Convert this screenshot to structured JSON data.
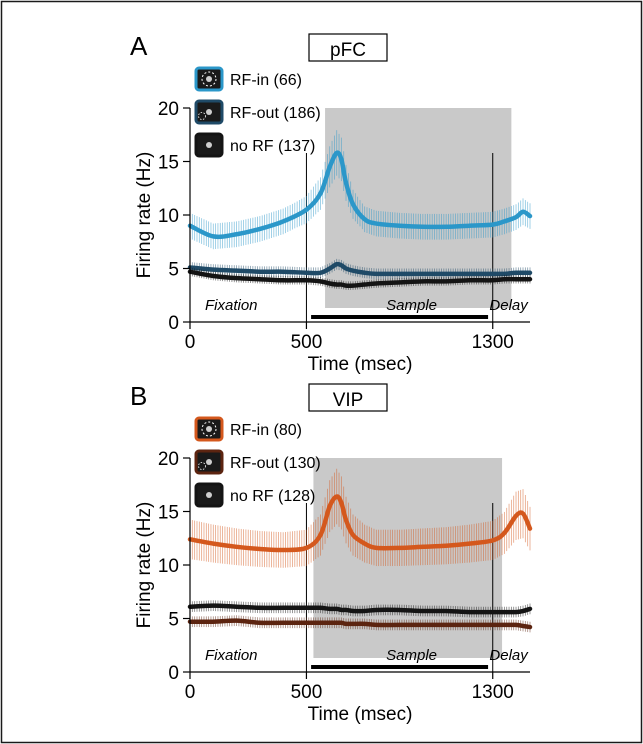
{
  "chart_data": [
    {
      "type": "line",
      "panel_label": "A",
      "title": "pFC",
      "xlabel": "Time (msec)",
      "ylabel": "Firing rate (Hz)",
      "xlim": [
        0,
        1460
      ],
      "ylim": [
        0,
        20
      ],
      "x_ticks": [
        0,
        500,
        1300
      ],
      "x_tick_labels": [
        "0",
        "500",
        "1300"
      ],
      "y_ticks": [
        0,
        5,
        10,
        15,
        20
      ],
      "y_tick_labels": [
        "0",
        "5",
        "10",
        "15",
        "20"
      ],
      "shaded_window": [
        580,
        1380
      ],
      "vertical_lines": [
        500,
        1300
      ],
      "epochs": [
        {
          "label": "Fixation",
          "start": 0,
          "end": 480
        },
        {
          "label": "Sample",
          "start": 520,
          "end": 1280
        },
        {
          "label": "Delay",
          "start": 1320,
          "end": 1460
        }
      ],
      "x": [
        0,
        100,
        200,
        300,
        400,
        500,
        560,
        600,
        630,
        650,
        670,
        700,
        750,
        800,
        900,
        1000,
        1100,
        1200,
        1300,
        1350,
        1400,
        1430,
        1460
      ],
      "series": [
        {
          "name": "RF-in (66)",
          "color": "#2b97c9",
          "values": [
            9.0,
            8.0,
            8.2,
            8.7,
            9.4,
            10.5,
            12.0,
            14.5,
            15.8,
            15.2,
            13.0,
            11.0,
            9.6,
            9.2,
            9.0,
            8.9,
            8.9,
            9.0,
            9.1,
            9.4,
            9.8,
            10.3,
            9.9
          ]
        },
        {
          "name": "RF-out (186)",
          "color": "#1f4a67",
          "values": [
            5.1,
            4.9,
            4.8,
            4.7,
            4.7,
            4.6,
            4.6,
            5.0,
            5.4,
            5.3,
            5.0,
            4.8,
            4.6,
            4.5,
            4.5,
            4.5,
            4.5,
            4.5,
            4.5,
            4.5,
            4.6,
            4.6,
            4.6
          ]
        },
        {
          "name": "no RF (137)",
          "color": "#141414",
          "values": [
            4.7,
            4.3,
            4.1,
            4.0,
            3.9,
            3.9,
            3.8,
            3.6,
            3.5,
            3.5,
            3.4,
            3.4,
            3.5,
            3.6,
            3.7,
            3.8,
            3.8,
            3.9,
            3.9,
            4.0,
            4.0,
            4.0,
            4.0
          ]
        }
      ]
    },
    {
      "type": "line",
      "panel_label": "B",
      "title": "VIP",
      "xlabel": "Time (msec)",
      "ylabel": "Firing rate (Hz)",
      "xlim": [
        0,
        1460
      ],
      "ylim": [
        0,
        20
      ],
      "x_ticks": [
        0,
        500,
        1300
      ],
      "x_tick_labels": [
        "0",
        "500",
        "1300"
      ],
      "y_ticks": [
        0,
        5,
        10,
        15,
        20
      ],
      "y_tick_labels": [
        "0",
        "5",
        "10",
        "15",
        "20"
      ],
      "shaded_window": [
        530,
        1340
      ],
      "vertical_lines": [
        500,
        1300
      ],
      "epochs": [
        {
          "label": "Fixation",
          "start": 0,
          "end": 480
        },
        {
          "label": "Sample",
          "start": 520,
          "end": 1280
        },
        {
          "label": "Delay",
          "start": 1320,
          "end": 1460
        }
      ],
      "x": [
        0,
        100,
        200,
        300,
        400,
        500,
        560,
        600,
        630,
        650,
        670,
        700,
        750,
        800,
        900,
        1000,
        1100,
        1200,
        1300,
        1350,
        1400,
        1430,
        1460
      ],
      "series": [
        {
          "name": "RF-in (80)",
          "color": "#d4581d",
          "values": [
            12.4,
            12.0,
            11.7,
            11.5,
            11.4,
            11.6,
            12.8,
            15.5,
            16.4,
            15.8,
            14.2,
            12.8,
            12.0,
            11.6,
            11.6,
            11.7,
            11.8,
            12.0,
            12.3,
            13.0,
            14.6,
            14.8,
            13.4
          ]
        },
        {
          "name": "RF-out (130)",
          "color": "#5c2410",
          "values": [
            4.7,
            4.7,
            4.8,
            4.6,
            4.6,
            4.6,
            4.6,
            4.6,
            4.6,
            4.6,
            4.5,
            4.5,
            4.5,
            4.4,
            4.4,
            4.4,
            4.4,
            4.4,
            4.4,
            4.4,
            4.4,
            4.3,
            4.2
          ]
        },
        {
          "name": "no RF (128)",
          "color": "#141414",
          "values": [
            6.1,
            6.2,
            6.1,
            6.0,
            6.0,
            6.0,
            6.0,
            5.9,
            5.9,
            5.8,
            5.8,
            5.7,
            5.7,
            5.8,
            5.8,
            5.7,
            5.7,
            5.6,
            5.6,
            5.6,
            5.6,
            5.7,
            5.9
          ]
        }
      ]
    }
  ]
}
